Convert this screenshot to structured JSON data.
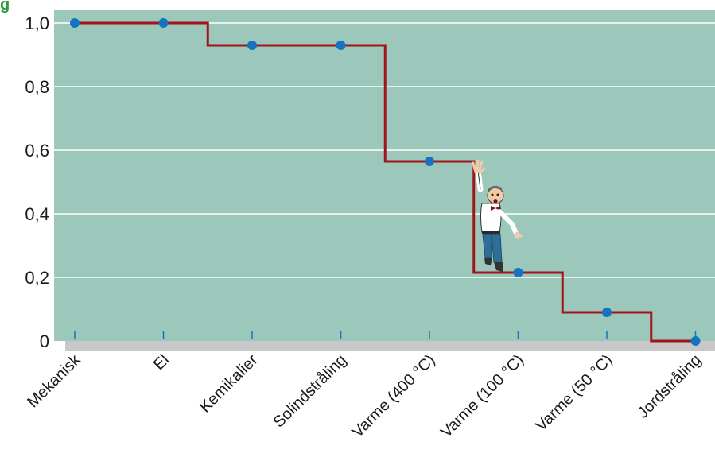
{
  "title_fragment": "g",
  "colors": {
    "plot_background": "#9cc8bb",
    "baseline_band": "#c8c8c8",
    "gridline": "#ffffff",
    "step_line": "#a1141b",
    "marker": "#1573bf",
    "tick": "#1573bf",
    "title_fragment": "#2e9a3a"
  },
  "chart_data": {
    "type": "line",
    "step": true,
    "categories": [
      "Mekanisk",
      "El",
      "Kemikalier",
      "Solindstråling",
      "Varme (400 °C)",
      "Varme (100 °C)",
      "Varme (50 °C)",
      "Jordstråling"
    ],
    "values": [
      1.0,
      1.0,
      0.93,
      0.93,
      0.565,
      0.215,
      0.09,
      0.0
    ],
    "ylim": [
      0,
      1.0
    ],
    "yticks": [
      "0",
      "0,2",
      "0,4",
      "0,6",
      "0,8",
      "1,0"
    ],
    "grid": true,
    "illustration": "falling-man"
  }
}
